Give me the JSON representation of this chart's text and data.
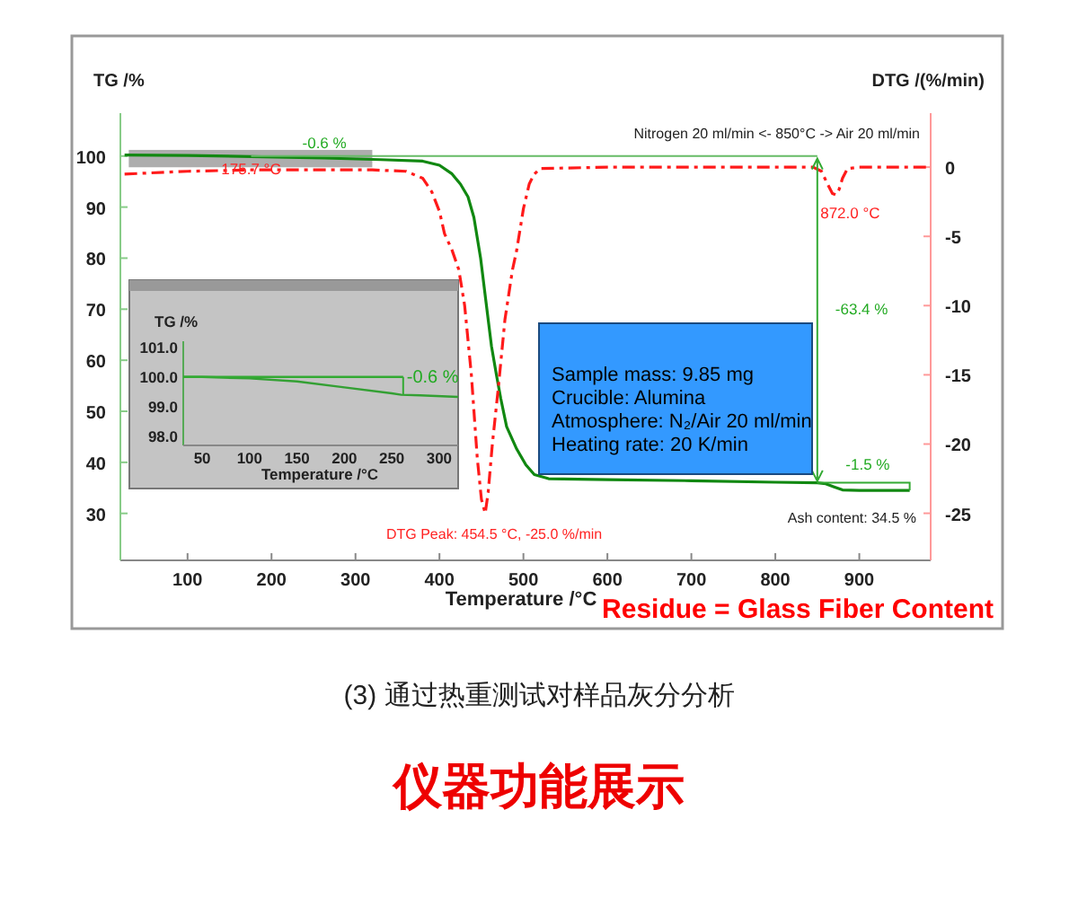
{
  "chart_data": [
    {
      "type": "line",
      "xlabel": "Temperature /°C",
      "ylabel": "TG /%",
      "y2label": "DTG /(%/min)",
      "series": [
        {
          "color": "#118811",
          "line_style": "solid",
          "x": [
            25,
            100,
            175.7,
            263,
            330,
            380,
            400,
            415,
            425,
            434,
            441,
            449,
            455,
            462,
            468,
            473,
            480,
            492,
            503,
            513,
            530,
            600,
            700,
            800,
            850,
            860,
            870,
            880,
            900,
            960
          ],
          "values": [
            100.2,
            100.1,
            99.9,
            99.6,
            99.3,
            99.0,
            98.2,
            96.5,
            94.5,
            92,
            88,
            80,
            72,
            62.7,
            57,
            52.5,
            47,
            42.6,
            39.5,
            37.6,
            36.8,
            36.6,
            36.4,
            36.1,
            36.0,
            35.8,
            35.2,
            34.6,
            34.5,
            34.5
          ]
        },
        {
          "color": "#ff1a1a",
          "line_style": "dashed",
          "axis": "y2",
          "x": [
            25,
            100,
            175.7,
            250,
            320,
            360,
            380,
            391,
            400,
            406,
            415,
            423,
            430,
            438,
            445,
            450,
            454.5,
            458,
            463,
            470,
            478,
            487,
            492,
            500,
            507,
            513,
            520,
            600,
            700,
            800,
            845,
            855,
            862,
            868,
            872,
            876,
            880,
            886,
            900,
            985
          ],
          "values": [
            -0.5,
            -0.3,
            -0.2,
            -0.2,
            -0.2,
            -0.3,
            -0.8,
            -1.8,
            -3.2,
            -4.8,
            -6,
            -7.4,
            -10,
            -15,
            -21,
            -24,
            -25.0,
            -23.5,
            -20,
            -16,
            -11,
            -7.4,
            -6,
            -3,
            -1.2,
            -0.5,
            -0.1,
            0,
            0,
            0,
            0,
            -0.3,
            -1.2,
            -1.9,
            -2.0,
            -1.6,
            -0.8,
            -0.1,
            0,
            0
          ]
        }
      ],
      "xlim": [
        20,
        985
      ],
      "xticks": [
        100,
        200,
        300,
        400,
        500,
        600,
        700,
        800,
        900
      ],
      "ylim": [
        20.8,
        108.4
      ],
      "yticks": [
        30,
        40,
        50,
        60,
        70,
        80,
        90,
        100
      ],
      "y2lim": [
        -28.4,
        3.9
      ],
      "y2ticks": [
        -25,
        -20,
        -15,
        -10,
        -5,
        0
      ],
      "grid": false,
      "annotations": [
        "-0.6 %",
        "175.7 °C",
        "Nitrogen 20 ml/min <- 850°C -> Air 20 ml/min",
        "872.0 °C",
        "-63.4 %",
        "-1.5 %",
        "Ash content: 34.5 %",
        "DTG Peak: 454.5 °C, -25.0 %/min",
        "Sample mass: 9.85 mg",
        "Crucible: Alumina",
        "Atmosphere: N₂/Air 20 ml/min",
        "Heating rate: 20 K/min",
        "Residue = Glass Fiber Content",
        "(3) 通过热重测试对样品灰分分析",
        "仪器功能展示"
      ]
    },
    {
      "type": "line",
      "title": "TG /%",
      "xlabel": "Temperature /°C",
      "series": [
        {
          "color": "#33a033",
          "x": [
            30,
            50,
            100,
            150,
            200,
            250,
            260,
            280,
            320
          ],
          "values": [
            100.0,
            100.0,
            99.95,
            99.85,
            99.65,
            99.45,
            99.4,
            99.38,
            99.33
          ]
        },
        {
          "color": "#33aa33",
          "x": [
            30,
            262
          ],
          "values": [
            100.0,
            100.0
          ]
        }
      ],
      "xlim": [
        30,
        320
      ],
      "xticks": [
        50,
        100,
        150,
        200,
        250,
        300
      ],
      "ylim": [
        97.7,
        101.2
      ],
      "yticks": [
        {
          "value": 98,
          "label": "98.0"
        },
        {
          "value": 99,
          "label": "99.0"
        },
        {
          "value": 100,
          "label": "100.0"
        },
        {
          "value": 101,
          "label": "101.0"
        }
      ],
      "grid": false,
      "annotations": [
        "-0.6 %"
      ]
    }
  ]
}
